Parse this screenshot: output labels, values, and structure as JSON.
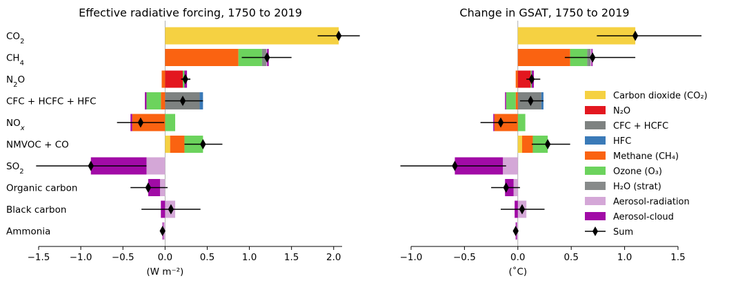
{
  "chart_data": [
    {
      "type": "bar",
      "title": "Effective radiative forcing, 1750 to 2019",
      "xlabel": "(W m⁻²)",
      "xlim": [
        -1.5,
        2.1
      ],
      "xticks": [
        -1.5,
        -1.0,
        -0.5,
        0.0,
        0.5,
        1.0,
        1.5,
        2.0
      ],
      "xtick_labels": [
        "−1.5",
        "−1.0",
        "−0.5",
        "0.0",
        "0.5",
        "1.0",
        "1.5",
        "2.0"
      ],
      "categories": [
        "CO₂",
        "CH₄",
        "N₂O",
        "CFC + HCFC + HFC",
        "NOₓ",
        "NMVOC + CO",
        "SO₂",
        "Organic carbon",
        "Black carbon",
        "Ammonia"
      ],
      "stacks": [
        [
          {
            "component": "co2",
            "value": 2.06
          }
        ],
        [
          {
            "component": "ch4",
            "value": 0.87
          },
          {
            "component": "ozone",
            "value": 0.28
          },
          {
            "component": "h2o",
            "value": 0.05
          },
          {
            "component": "aer_rad",
            "value": 0.01
          },
          {
            "component": "aer_cloud",
            "value": 0.02
          }
        ],
        [
          {
            "component": "n2o",
            "value": 0.21
          },
          {
            "component": "ozone",
            "value": 0.02
          },
          {
            "component": "aer_cloud",
            "value": 0.03
          },
          {
            "component": "ch4",
            "value": -0.04
          }
        ],
        [
          {
            "component": "cfc",
            "value": 0.41
          },
          {
            "component": "hfc",
            "value": 0.04
          },
          {
            "component": "ch4",
            "value": -0.05
          },
          {
            "component": "ozone",
            "value": -0.17
          },
          {
            "component": "aer_cloud",
            "value": -0.02
          }
        ],
        [
          {
            "component": "ozone",
            "value": 0.12
          },
          {
            "component": "ch4",
            "value": -0.39
          },
          {
            "component": "aer_cloud",
            "value": -0.02
          }
        ],
        [
          {
            "component": "co2",
            "value": 0.06
          },
          {
            "component": "ch4",
            "value": 0.17
          },
          {
            "component": "ozone",
            "value": 0.22
          }
        ],
        [
          {
            "component": "aer_rad",
            "value": -0.22
          },
          {
            "component": "aer_cloud",
            "value": -0.66
          }
        ],
        [
          {
            "component": "aer_rad",
            "value": -0.06
          },
          {
            "component": "aer_cloud",
            "value": -0.14
          }
        ],
        [
          {
            "component": "aer_rad",
            "value": 0.12
          },
          {
            "component": "aer_cloud",
            "value": -0.05
          }
        ],
        [
          {
            "component": "aer_rad",
            "value": -0.02
          },
          {
            "component": "aer_cloud",
            "value": -0.01
          }
        ]
      ],
      "sum": [
        2.06,
        1.21,
        0.24,
        0.21,
        -0.29,
        0.45,
        -0.88,
        -0.2,
        0.07,
        -0.03
      ],
      "error_low": [
        1.81,
        0.91,
        0.19,
        0.0,
        -0.57,
        0.23,
        -1.53,
        -0.41,
        -0.28,
        -0.03
      ],
      "error_high": [
        2.31,
        1.5,
        0.3,
        0.45,
        -0.01,
        0.68,
        -0.22,
        0.03,
        0.42,
        -0.03
      ]
    },
    {
      "type": "bar",
      "title": "Change in GSAT, 1750 to 2019",
      "xlabel": "(˚C)",
      "xlim": [
        -1.0,
        1.5
      ],
      "xticks": [
        -1.0,
        -0.5,
        0.0,
        0.5,
        1.0,
        1.5
      ],
      "xtick_labels": [
        "−1.0",
        "−0.5",
        "0.0",
        "0.5",
        "1.0",
        "1.5"
      ],
      "stacks": [
        [
          {
            "component": "co2",
            "value": 1.1
          }
        ],
        [
          {
            "component": "ch4",
            "value": 0.49
          },
          {
            "component": "ozone",
            "value": 0.16
          },
          {
            "component": "h2o",
            "value": 0.03
          },
          {
            "component": "aer_rad",
            "value": 0.01
          },
          {
            "component": "aer_cloud",
            "value": 0.01
          }
        ],
        [
          {
            "component": "n2o",
            "value": 0.12
          },
          {
            "component": "ozone",
            "value": 0.01
          },
          {
            "component": "aer_cloud",
            "value": 0.02
          },
          {
            "component": "ch4",
            "value": -0.02
          }
        ],
        [
          {
            "component": "cfc",
            "value": 0.22
          },
          {
            "component": "hfc",
            "value": 0.02
          },
          {
            "component": "ch4",
            "value": -0.02
          },
          {
            "component": "ozone",
            "value": -0.09
          },
          {
            "component": "aer_cloud",
            "value": -0.01
          }
        ],
        [
          {
            "component": "ozone",
            "value": 0.07
          },
          {
            "component": "ch4",
            "value": -0.22
          },
          {
            "component": "aer_cloud",
            "value": -0.01
          }
        ],
        [
          {
            "component": "co2",
            "value": 0.04
          },
          {
            "component": "ch4",
            "value": 0.1
          },
          {
            "component": "ozone",
            "value": 0.14
          }
        ],
        [
          {
            "component": "aer_rad",
            "value": -0.14
          },
          {
            "component": "aer_cloud",
            "value": -0.45
          }
        ],
        [
          {
            "component": "aer_rad",
            "value": -0.04
          },
          {
            "component": "aer_cloud",
            "value": -0.08
          }
        ],
        [
          {
            "component": "aer_rad",
            "value": 0.08
          },
          {
            "component": "aer_cloud",
            "value": -0.03
          }
        ],
        [
          {
            "component": "aer_rad",
            "value": -0.01
          },
          {
            "component": "aer_cloud",
            "value": -0.01
          }
        ]
      ],
      "sum": [
        1.1,
        0.7,
        0.13,
        0.12,
        -0.16,
        0.28,
        -0.59,
        -0.11,
        0.04,
        -0.02
      ],
      "error_low": [
        0.74,
        0.44,
        0.08,
        0.02,
        -0.35,
        0.13,
        -1.1,
        -0.25,
        -0.16,
        -0.02
      ],
      "error_high": [
        1.72,
        1.1,
        0.21,
        0.24,
        -0.01,
        0.49,
        -0.11,
        0.02,
        0.25,
        -0.02
      ]
    }
  ],
  "components": {
    "co2": "#f5d142",
    "n2o": "#e3171f",
    "cfc": "#7e8281",
    "hfc": "#3a7ab8",
    "ch4": "#fa6311",
    "ozone": "#6cd35d",
    "h2o": "#878a8a",
    "aer_rad": "#d4a7d7",
    "aer_cloud": "#a10ba6"
  },
  "legend": [
    {
      "component": "co2",
      "label": "Carbon dioxide (CO₂)"
    },
    {
      "component": "n2o",
      "label": "N₂O"
    },
    {
      "component": "cfc",
      "label": "CFC + HCFC"
    },
    {
      "component": "hfc",
      "label": "HFC"
    },
    {
      "component": "ch4",
      "label": "Methane (CH₄)"
    },
    {
      "component": "ozone",
      "label": "Ozone (O₃)"
    },
    {
      "component": "h2o",
      "label": "H₂O (strat)"
    },
    {
      "component": "aer_rad",
      "label": "Aerosol-radiation"
    },
    {
      "component": "aer_cloud",
      "label": "Aerosol-cloud"
    },
    {
      "component": "sum",
      "label": "Sum"
    }
  ]
}
